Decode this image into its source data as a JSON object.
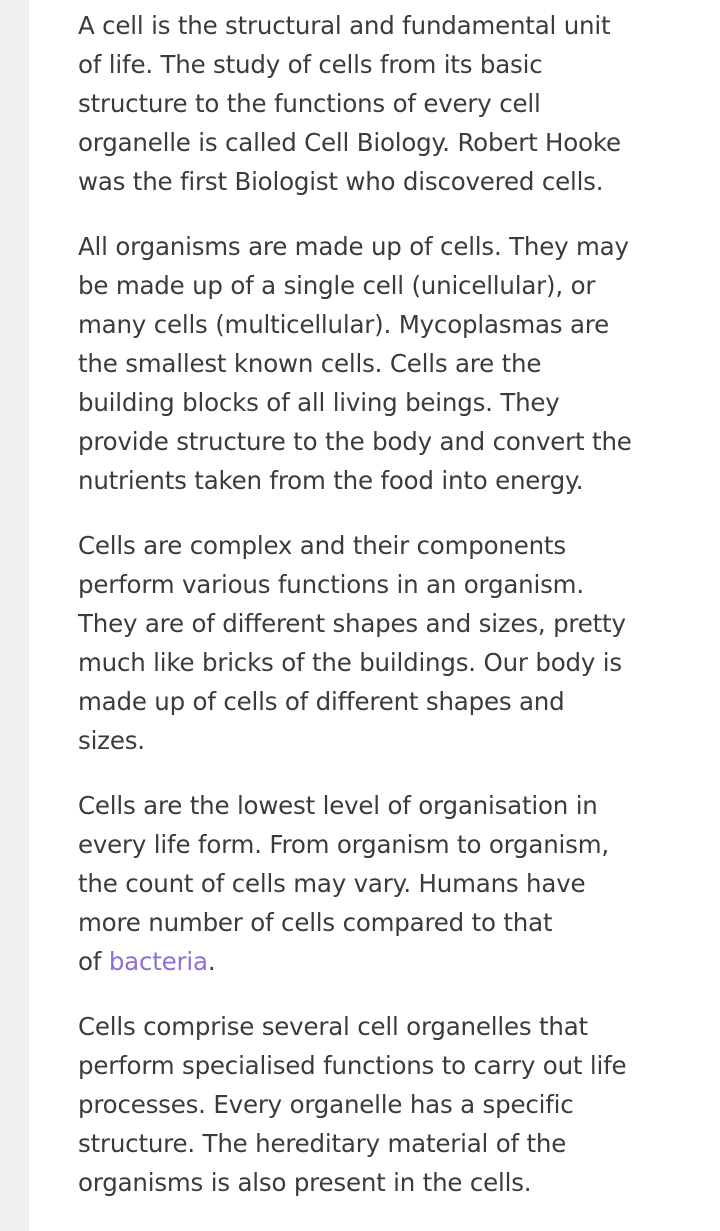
{
  "article": {
    "p1": "A cell is the structural and fundamental unit\nof life. The study of cells from its basic\nstructure to the functions of every cell\norganelle is called Cell Biology. Robert Hooke\nwas the first Biologist who discovered cells.",
    "p2": "All organisms are made up of cells. They may\nbe made up of a single cell (unicellular), or\nmany cells (multicellular).  Mycoplasmas are\nthe smallest known cells. Cells are the\nbuilding blocks of all living beings. They\nprovide structure to the body and convert the\nnutrients taken from the food into energy.",
    "p3": "Cells are complex and their components\nperform various functions in an organism.\nThey are of different shapes and sizes, pretty\nmuch like bricks of the buildings. Our body is\nmade up of cells of different shapes and\nsizes.",
    "p4_text": "Cells are the lowest level of organisation in\nevery life form. From organism to organism,\nthe count of cells may vary. Humans have\nmore number of cells compared to that\nof ",
    "p4_link": "bacteria",
    "p4_end": ".",
    "p5": "Cells comprise several cell organelles that\nperform specialised functions to carry out life\nprocesses. Every organelle has a specific\nstructure. The hereditary material of the\norganisms is also present in the cells."
  },
  "colors": {
    "text": "#3b3b3b",
    "link": "#8e6fd6",
    "margin": "#f0f0f0",
    "page": "#ffffff"
  }
}
